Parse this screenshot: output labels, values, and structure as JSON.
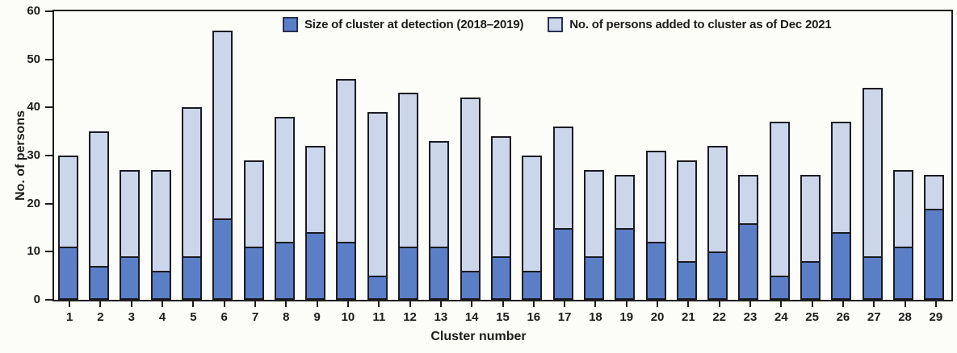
{
  "chart_data": {
    "type": "bar",
    "stacked": true,
    "title": "",
    "xlabel": "Cluster number",
    "ylabel": "No. of persons",
    "ylim": [
      0,
      60
    ],
    "yticks": [
      0,
      10,
      20,
      30,
      40,
      50,
      60
    ],
    "grid": false,
    "legend_position": "top-center-inside",
    "categories": [
      1,
      2,
      3,
      4,
      5,
      6,
      7,
      8,
      9,
      10,
      11,
      12,
      13,
      14,
      15,
      16,
      17,
      18,
      19,
      20,
      21,
      22,
      23,
      24,
      25,
      26,
      27,
      28,
      29
    ],
    "series": [
      {
        "name": "Size of cluster at detection (2018–2019)",
        "color": "#5b7fc7",
        "values": [
          11,
          7,
          9,
          6,
          9,
          17,
          11,
          12,
          14,
          12,
          5,
          11,
          11,
          6,
          9,
          6,
          15,
          9,
          15,
          12,
          8,
          10,
          16,
          5,
          8,
          14,
          9,
          11,
          19
        ]
      },
      {
        "name": "No. of persons added to cluster as of Dec 2021",
        "color": "#ccd6ea",
        "values": [
          19,
          28,
          18,
          21,
          31,
          39,
          18,
          26,
          18,
          34,
          34,
          32,
          22,
          36,
          25,
          24,
          21,
          18,
          11,
          19,
          21,
          22,
          10,
          32,
          18,
          23,
          35,
          16,
          7
        ]
      }
    ],
    "totals": [
      30,
      35,
      27,
      27,
      40,
      56,
      29,
      38,
      32,
      46,
      39,
      43,
      33,
      42,
      34,
      30,
      36,
      27,
      26,
      31,
      29,
      32,
      26,
      37,
      26,
      37,
      44,
      27,
      26
    ]
  },
  "colors": {
    "background": "#fcfdf8",
    "axis": "#1b1b1b",
    "bar_border": "#1b1b22",
    "legend_swatch_border": "#273154",
    "series_detection": "#5b7fc7",
    "series_added": "#ccd6ea"
  }
}
